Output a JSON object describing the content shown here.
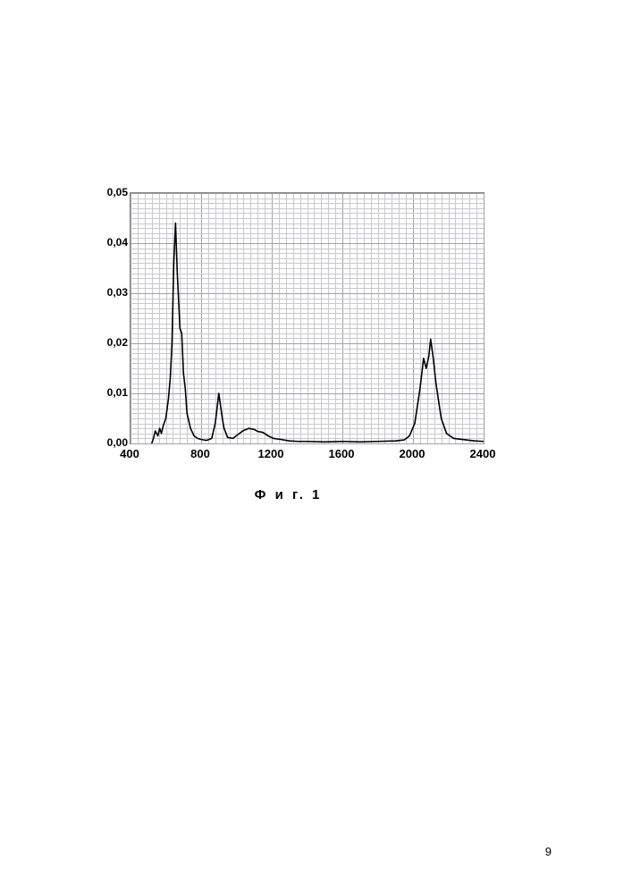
{
  "chart": {
    "type": "line",
    "caption": "Ф и г. 1",
    "xlim": [
      400,
      2400
    ],
    "ylim": [
      0.0,
      0.05
    ],
    "x_ticks": [
      400,
      800,
      1200,
      1600,
      2000,
      2400
    ],
    "y_ticks": [
      "0,00",
      "0,01",
      "0,02",
      "0,03",
      "0,04",
      "0,05"
    ],
    "x_tick_values": [
      400,
      800,
      1200,
      1600,
      2000,
      2400
    ],
    "y_tick_values": [
      0.0,
      0.01,
      0.02,
      0.03,
      0.04,
      0.05
    ],
    "background_color": "#ffffff",
    "grid_major_color": "#a0a0a8",
    "grid_minor_color": "#c8c8d0",
    "line_color": "#000000",
    "line_width": 1.6,
    "axis_font_size": 12,
    "series": {
      "x": [
        520,
        530,
        540,
        555,
        565,
        575,
        585,
        600,
        615,
        625,
        635,
        645,
        655,
        665,
        680,
        690,
        700,
        710,
        720,
        740,
        760,
        780,
        800,
        830,
        860,
        880,
        900,
        910,
        920,
        930,
        950,
        980,
        1010,
        1040,
        1070,
        1100,
        1120,
        1150,
        1180,
        1210,
        1250,
        1300,
        1350,
        1400,
        1500,
        1600,
        1700,
        1800,
        1900,
        1950,
        1980,
        2010,
        2040,
        2060,
        2075,
        2090,
        2100,
        2115,
        2130,
        2160,
        2190,
        2230,
        2280,
        2350,
        2400
      ],
      "y": [
        0.0,
        0.001,
        0.0025,
        0.0015,
        0.003,
        0.002,
        0.0035,
        0.005,
        0.009,
        0.013,
        0.02,
        0.036,
        0.044,
        0.034,
        0.023,
        0.022,
        0.014,
        0.011,
        0.006,
        0.003,
        0.0015,
        0.001,
        0.0008,
        0.0006,
        0.001,
        0.004,
        0.01,
        0.0075,
        0.005,
        0.003,
        0.0012,
        0.001,
        0.0018,
        0.0026,
        0.003,
        0.0028,
        0.0024,
        0.0022,
        0.0015,
        0.001,
        0.0008,
        0.0005,
        0.0004,
        0.0004,
        0.0003,
        0.0004,
        0.0003,
        0.0004,
        0.0005,
        0.0007,
        0.0015,
        0.004,
        0.011,
        0.017,
        0.015,
        0.0175,
        0.0208,
        0.017,
        0.012,
        0.005,
        0.002,
        0.001,
        0.0008,
        0.0005,
        0.0004
      ]
    }
  },
  "page_number": "9"
}
